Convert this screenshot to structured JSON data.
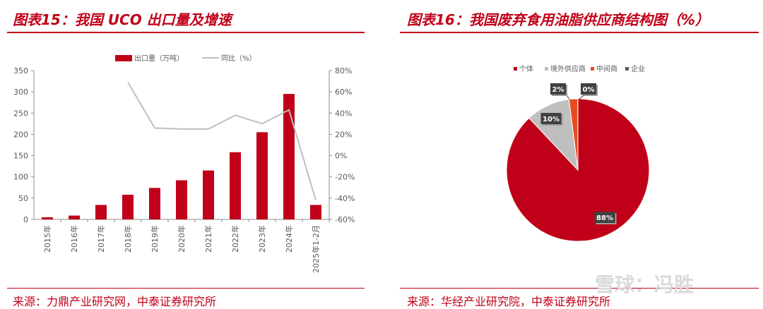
{
  "left": {
    "title": "图表15：我国 UCO 出口量及增速",
    "source": "来源：力鼎产业研究网，中泰证券研究所"
  },
  "right": {
    "title": "图表16：我国废弃食用油脂供应商结构图（%）",
    "source": "来源：华经产业研究院，中泰证券研究所"
  },
  "watermark": "雪球：冯胜",
  "colors": {
    "accent": "#c00018",
    "bar": "#c00018",
    "line": "#bfbfbf",
    "gray": "#bfbfbf",
    "orange": "#e84c1e",
    "dark": "#595959"
  },
  "chart_data": [
    {
      "type": "bar",
      "categories": [
        "2015年",
        "2016年",
        "2017年",
        "2018年",
        "2019年",
        "2020年",
        "2021年",
        "2022年",
        "2023年",
        "2024年",
        "2025年1-2月"
      ],
      "series": [
        {
          "name": "出口量（万吨）",
          "type": "bar",
          "axis": "left",
          "values": [
            5,
            9,
            34,
            58,
            74,
            92,
            115,
            158,
            205,
            295,
            34
          ]
        },
        {
          "name": "同比（%）",
          "type": "line",
          "axis": "right",
          "values": [
            null,
            null,
            null,
            69,
            26,
            25,
            25,
            38,
            30,
            43,
            -42
          ]
        }
      ],
      "yticks_left": [
        "0",
        "50",
        "100",
        "150",
        "200",
        "250",
        "300",
        "350"
      ],
      "yticks_right": [
        "-60%",
        "-40%",
        "-20%",
        "0%",
        "20%",
        "40%",
        "60%",
        "80%"
      ],
      "ylim_left": [
        0,
        350
      ],
      "ylim_right": [
        -60,
        80
      ],
      "legend_position": "top"
    },
    {
      "type": "pie",
      "legend": [
        "个体",
        "境外供应商",
        "中间商",
        "企业"
      ],
      "values": [
        88,
        10,
        2,
        0
      ],
      "labels": [
        "88%",
        "10%",
        "2%",
        "0%"
      ],
      "colors": [
        "#c00018",
        "#bfbfbf",
        "#e84c1e",
        "#595959"
      ],
      "legend_position": "top"
    }
  ]
}
